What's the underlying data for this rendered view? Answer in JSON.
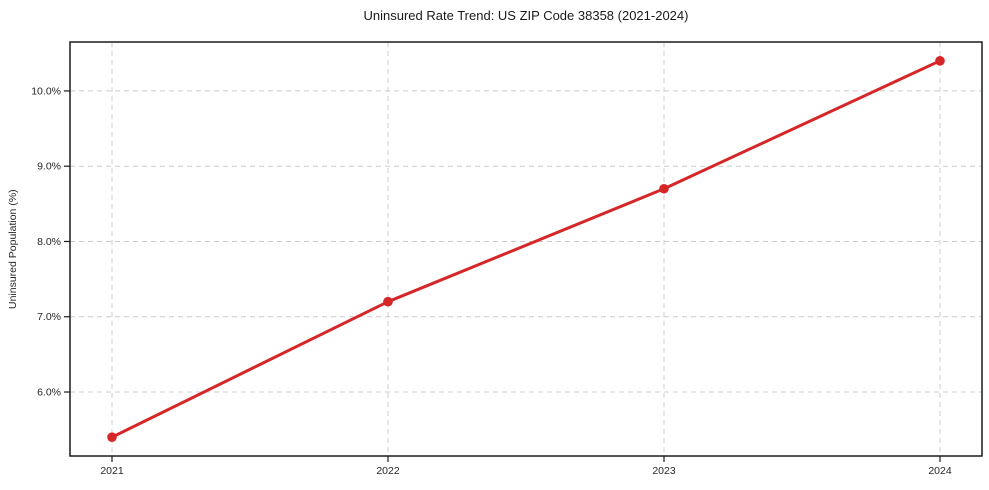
{
  "chart_data": {
    "type": "line",
    "title": "Uninsured Rate Trend: US ZIP Code 38358 (2021-2024)",
    "xlabel": "",
    "ylabel": "Uninsured Population (%)",
    "categories": [
      "2021",
      "2022",
      "2023",
      "2024"
    ],
    "values": [
      5.4,
      7.2,
      8.7,
      10.4
    ],
    "xtick_labels": [
      "2021",
      "2022",
      "2023",
      "2024"
    ],
    "ytick_values": [
      6.0,
      7.0,
      8.0,
      9.0,
      10.0
    ],
    "ytick_labels": [
      "6.0%",
      "7.0%",
      "8.0%",
      "9.0%",
      "10.0%"
    ],
    "ylim": [
      5.15,
      10.65
    ],
    "grid": true,
    "grid_style": "dashed",
    "legend": "none",
    "colors": {
      "line": "#d62728",
      "marker": "#d62728",
      "grid": "#cccccc",
      "axis": "#1a1a1a",
      "text": "#262626",
      "background": "#ffffff"
    }
  }
}
